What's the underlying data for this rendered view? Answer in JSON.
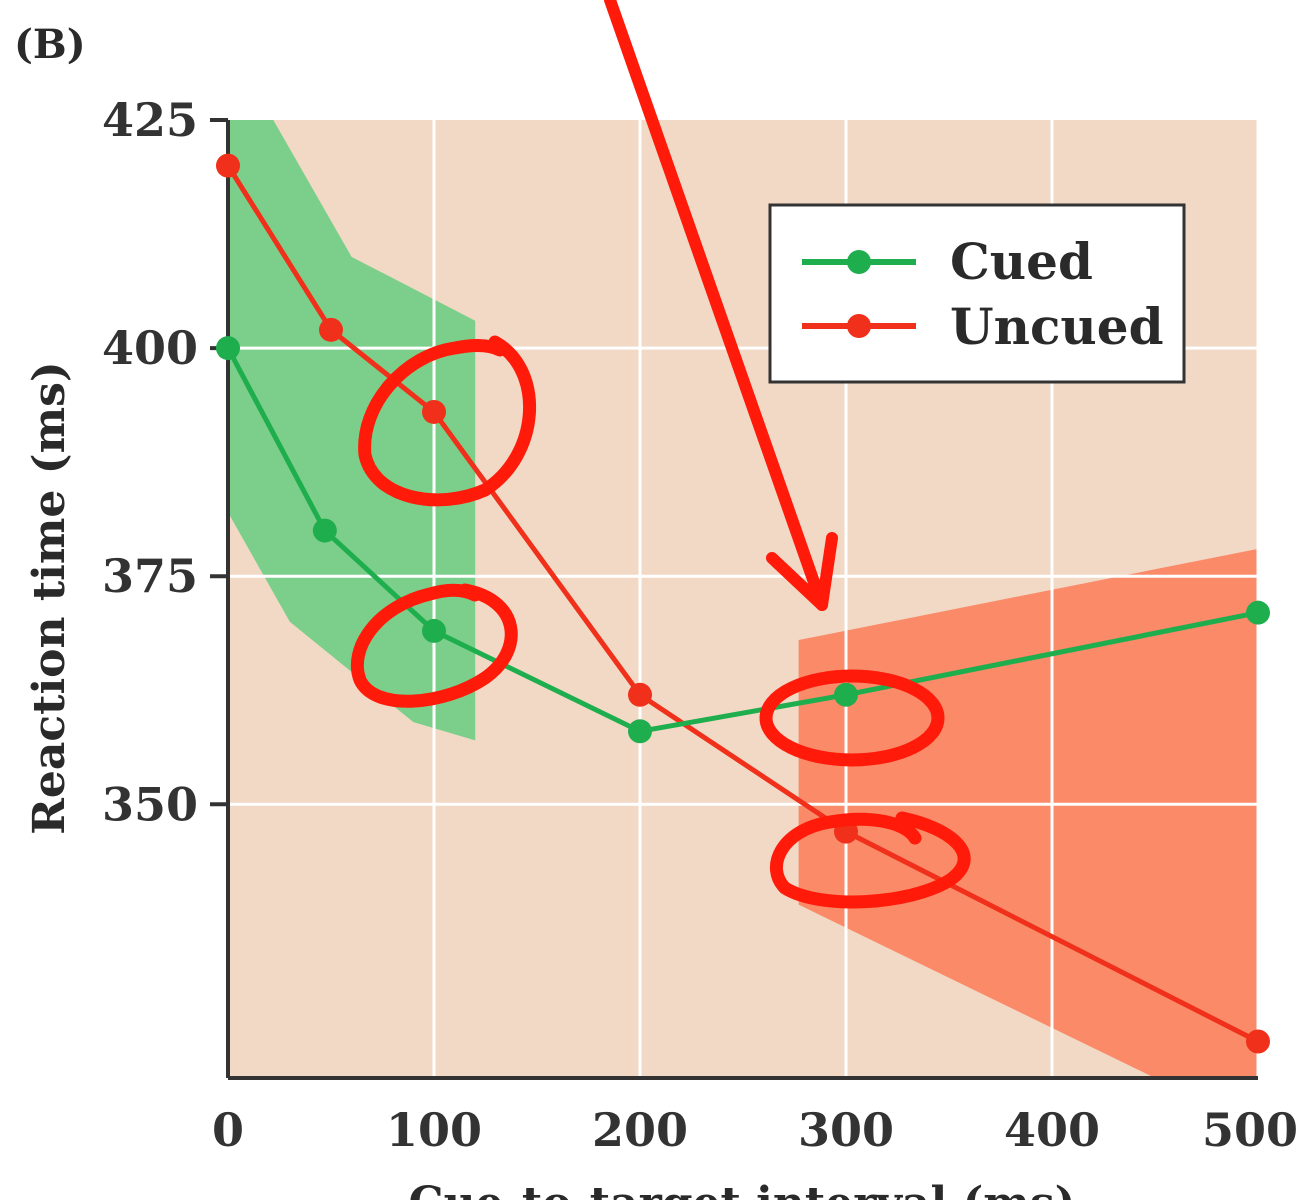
{
  "panel_label": "(B)",
  "chart_data": {
    "type": "line",
    "title": "",
    "xlabel": "Cue-to-target interval (ms)",
    "ylabel": "Reaction time (ms)",
    "xlim": [
      0,
      500
    ],
    "ylim": [
      320,
      425
    ],
    "x_ticks": [
      0,
      100,
      200,
      300,
      400,
      500
    ],
    "y_ticks": [
      350,
      375,
      400,
      425
    ],
    "grid": true,
    "legend_position": "top-right",
    "background_color": "#f2d9c5",
    "series": [
      {
        "name": "Cued",
        "color": "#1fae4e",
        "x": [
          0,
          47,
          100,
          200,
          300,
          500
        ],
        "y": [
          400,
          380,
          369,
          358,
          362,
          371
        ]
      },
      {
        "name": "Uncued",
        "color": "#f0301a",
        "x": [
          0,
          50,
          100,
          200,
          300,
          500
        ],
        "y": [
          420,
          402,
          393,
          362,
          347,
          324
        ]
      }
    ],
    "shaded_regions": [
      {
        "color": "#7ccf8a",
        "x_range": [
          0,
          120
        ]
      },
      {
        "color": "#fa8a68",
        "x_range": [
          277,
          500
        ]
      }
    ],
    "annotations": [
      {
        "type": "hand-drawn-arrow",
        "color": "#ff1a0a",
        "target": {
          "x": 290,
          "y": 376
        }
      },
      {
        "type": "hand-drawn-circle",
        "color": "#ff1a0a",
        "around": {
          "x": 100,
          "y": 393
        }
      },
      {
        "type": "hand-drawn-circle",
        "color": "#ff1a0a",
        "around": {
          "x": 100,
          "y": 369
        }
      },
      {
        "type": "hand-drawn-circle",
        "color": "#ff1a0a",
        "around": {
          "x": 300,
          "y": 362
        }
      },
      {
        "type": "hand-drawn-circle",
        "color": "#ff1a0a",
        "around": {
          "x": 300,
          "y": 347
        }
      }
    ]
  }
}
